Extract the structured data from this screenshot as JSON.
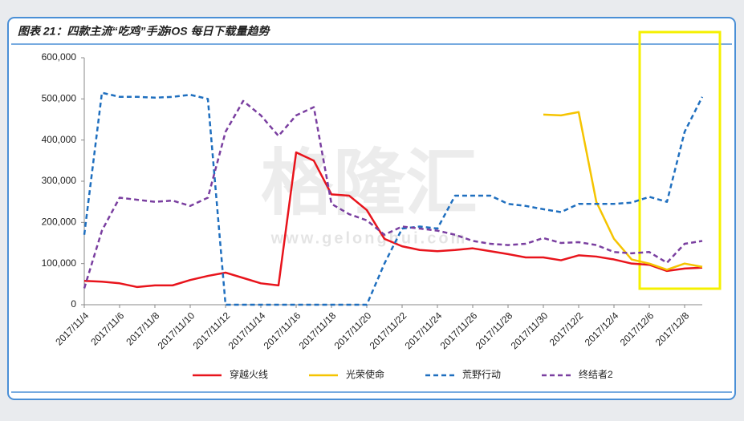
{
  "chart_data": {
    "type": "line",
    "title": "图表 21：四款主流“吃鸡”手游iOS 每日下载量趋势",
    "watermark": "格隆汇",
    "watermark_url": "www.gelonghui.com",
    "categories": [
      "2017/11/4",
      null,
      "2017/11/6",
      null,
      "2017/11/8",
      null,
      "2017/11/10",
      null,
      "2017/11/12",
      null,
      "2017/11/14",
      null,
      "2017/11/16",
      null,
      "2017/11/18",
      null,
      "2017/11/20",
      null,
      "2017/11/22",
      null,
      "2017/11/24",
      null,
      "2017/11/26",
      null,
      "2017/11/28",
      null,
      "2017/11/30",
      null,
      "2017/12/2",
      null,
      "2017/12/4",
      null,
      "2017/12/6",
      null,
      "2017/12/8",
      null
    ],
    "series": [
      {
        "name": "穿越火线",
        "color": "#e8141c",
        "line_style": "solid",
        "values": [
          58000,
          56000,
          52000,
          43000,
          47000,
          47000,
          60000,
          70000,
          78000,
          65000,
          52000,
          47000,
          370000,
          350000,
          268000,
          265000,
          230000,
          160000,
          142000,
          133000,
          130000,
          133000,
          137000,
          130000,
          123000,
          115000,
          115000,
          108000,
          120000,
          117000,
          110000,
          100000,
          97000,
          82000,
          88000,
          90000
        ]
      },
      {
        "name": "光荣使命",
        "color": "#f5c400",
        "line_style": "solid",
        "values": [
          null,
          null,
          null,
          null,
          null,
          null,
          null,
          null,
          null,
          null,
          null,
          null,
          null,
          null,
          null,
          null,
          null,
          null,
          null,
          null,
          null,
          null,
          null,
          null,
          null,
          null,
          462000,
          460000,
          468000,
          250000,
          160000,
          110000,
          100000,
          85000,
          100000,
          92000
        ]
      },
      {
        "name": "荒野行动",
        "color": "#1f6fbf",
        "line_style": "dashed",
        "values": [
          170000,
          515000,
          505000,
          505000,
          503000,
          505000,
          510000,
          500000,
          0,
          0,
          0,
          0,
          0,
          0,
          0,
          0,
          0,
          100000,
          185000,
          190000,
          185000,
          265000,
          265000,
          265000,
          245000,
          240000,
          232000,
          225000,
          245000,
          245000,
          245000,
          248000,
          262000,
          250000,
          420000,
          505000
        ]
      },
      {
        "name": "终结者2",
        "color": "#7a3fa0",
        "line_style": "dashed",
        "values": [
          40000,
          180000,
          260000,
          255000,
          250000,
          253000,
          240000,
          260000,
          420000,
          495000,
          460000,
          410000,
          460000,
          480000,
          245000,
          220000,
          205000,
          170000,
          190000,
          185000,
          180000,
          170000,
          155000,
          148000,
          145000,
          148000,
          162000,
          150000,
          152000,
          145000,
          128000,
          125000,
          128000,
          102000,
          148000,
          155000
        ]
      }
    ],
    "ylim": [
      0,
      600000
    ],
    "yticks": [
      0,
      {
        "value": 100000,
        "label": "100,000"
      },
      {
        "value": 200000,
        "label": "200,000"
      },
      {
        "value": 300000,
        "label": "300,000"
      },
      {
        "value": 400000,
        "label": "400,000"
      },
      {
        "value": 500000,
        "label": "500,000"
      },
      {
        "value": 600000,
        "label": "600,000"
      }
    ],
    "grid": false,
    "legend": "bottom"
  }
}
